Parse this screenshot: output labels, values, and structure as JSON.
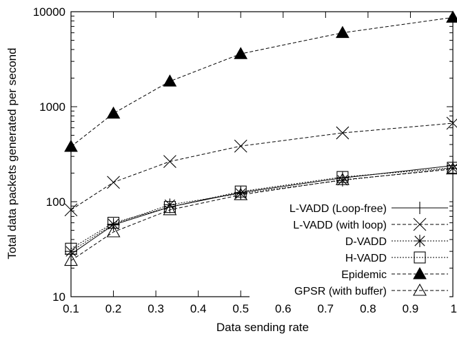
{
  "chart_data": {
    "type": "line",
    "title": "",
    "xlabel": "Data sending rate",
    "ylabel": "Total data packets generated per second",
    "x_scale": "linear",
    "y_scale": "log",
    "xlim": [
      0.1,
      1
    ],
    "ylim": [
      10,
      10000
    ],
    "x_ticks": [
      0.1,
      0.2,
      0.3,
      0.4,
      0.5,
      0.6,
      0.7,
      0.8,
      0.9,
      1
    ],
    "x_tick_labels": [
      "0.1",
      "0.2",
      "0.3",
      "0.4",
      "0.5",
      "0.6",
      "0.7",
      "0.8",
      "0.9",
      "1"
    ],
    "y_ticks": [
      10,
      100,
      1000,
      10000
    ],
    "y_tick_labels": [
      "10",
      "100",
      "1000",
      "10000"
    ],
    "grid": false,
    "legend_position": "bottom-right",
    "x": [
      0.1,
      0.2,
      0.333,
      0.5,
      0.74,
      1
    ],
    "series": [
      {
        "name": "L-VADD (Loop-free)",
        "marker": "plus",
        "line": "solid",
        "values": [
          28,
          57,
          88,
          125,
          178,
          240
        ]
      },
      {
        "name": "L-VADD (with loop)",
        "marker": "cross",
        "line": "dashed",
        "values": [
          82,
          160,
          265,
          385,
          530,
          670
        ]
      },
      {
        "name": "D-VADD",
        "marker": "star",
        "line": "dotted",
        "values": [
          30,
          58,
          93,
          122,
          168,
          225
        ]
      },
      {
        "name": "H-VADD",
        "marker": "square",
        "line": "dotted",
        "values": [
          32,
          60,
          88,
          128,
          182,
          228
        ]
      },
      {
        "name": "Epidemic",
        "marker": "filled-triangle",
        "line": "dashed",
        "values": [
          380,
          850,
          1850,
          3600,
          6000,
          8700
        ]
      },
      {
        "name": "GPSR (with buffer)",
        "marker": "open-triangle",
        "line": "dashed",
        "values": [
          24,
          48,
          82,
          118,
          170,
          220
        ]
      }
    ],
    "colors": {
      "ink": "#000000",
      "background": "#ffffff"
    }
  }
}
